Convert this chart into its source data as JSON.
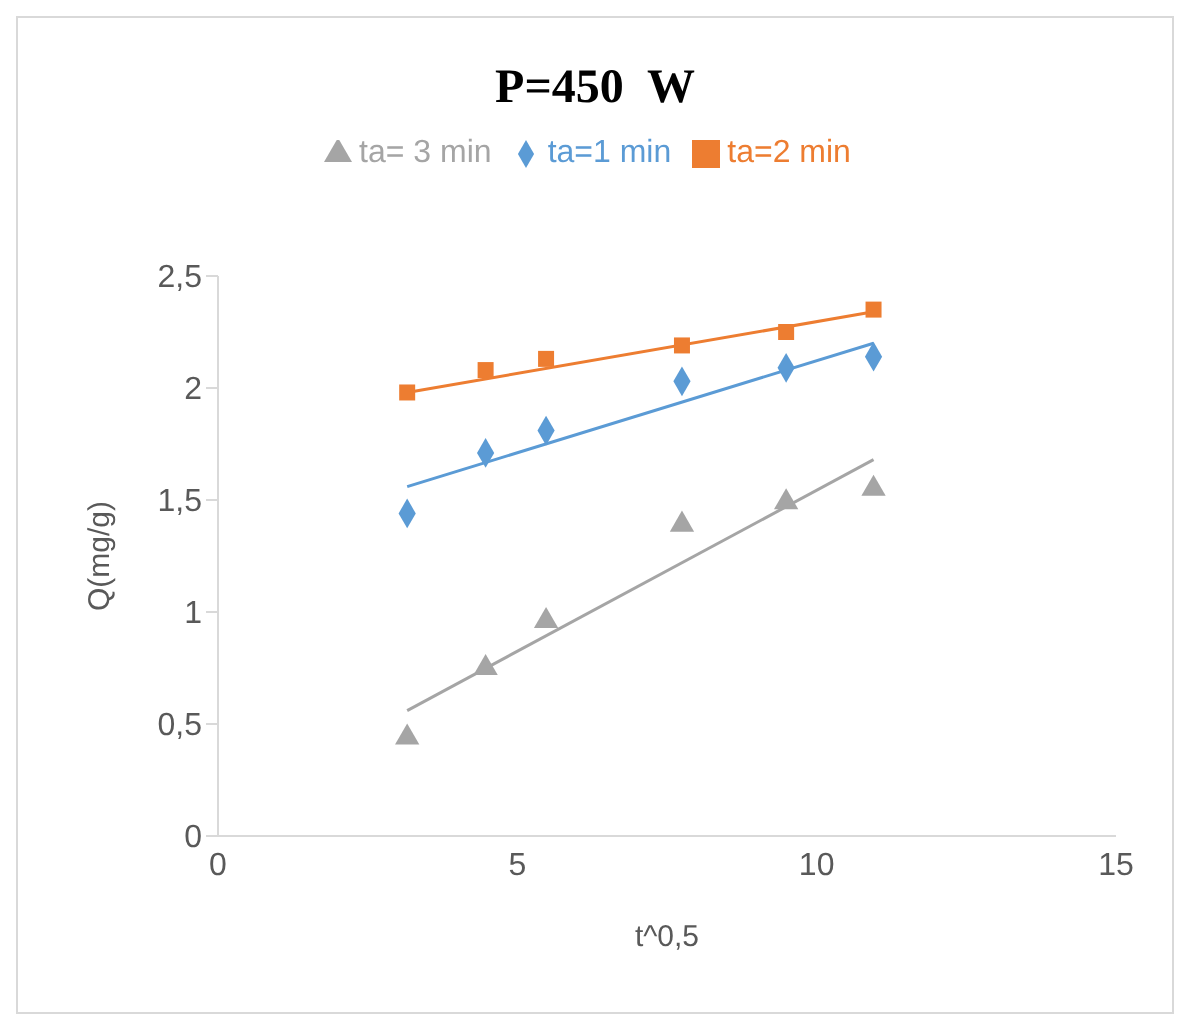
{
  "chart_data": {
    "type": "scatter",
    "title": "P=450  W",
    "xlabel": "t^0,5",
    "ylabel": "Q(mg/g)",
    "legend": "top",
    "xlim": [
      0,
      15
    ],
    "xticks": [
      0,
      5,
      10,
      15
    ],
    "ylim": [
      0,
      2.5
    ],
    "yticks": [
      0,
      {
        "value": 0.5,
        "label": "0,5"
      },
      1,
      {
        "value": 1.5,
        "label": "1,5"
      },
      2,
      {
        "value": 2.5,
        "label": "2,5"
      }
    ],
    "series": [
      {
        "name": "ta=1 min",
        "color": "#5b9bd5",
        "marker": "diamond",
        "x": [
          3.16,
          4.47,
          5.48,
          7.75,
          9.49,
          10.95
        ],
        "values": [
          1.44,
          1.71,
          1.81,
          2.03,
          2.09,
          2.14
        ]
      },
      {
        "name": "ta=2 min",
        "color": "#ed7d31",
        "marker": "square",
        "x": [
          3.16,
          4.47,
          5.48,
          7.75,
          9.49,
          10.95
        ],
        "values": [
          1.98,
          2.08,
          2.13,
          2.19,
          2.25,
          2.35
        ]
      },
      {
        "name": "ta= 3 min",
        "color": "#a5a5a5",
        "marker": "triangle",
        "x": [
          3.16,
          4.47,
          5.48,
          7.75,
          9.49,
          10.95
        ],
        "values": [
          0.44,
          0.75,
          0.96,
          1.39,
          1.49,
          1.55
        ]
      },
      {
        "type": "line",
        "color": "#5b9bd5",
        "x": [
          3.16,
          10.95
        ],
        "values": [
          1.56,
          2.2
        ]
      },
      {
        "type": "line",
        "color": "#ed7d31",
        "x": [
          3.16,
          10.95
        ],
        "values": [
          1.98,
          2.34
        ]
      },
      {
        "type": "line",
        "color": "#a5a5a5",
        "x": [
          3.16,
          10.95
        ],
        "values": [
          0.56,
          1.68
        ]
      }
    ]
  }
}
